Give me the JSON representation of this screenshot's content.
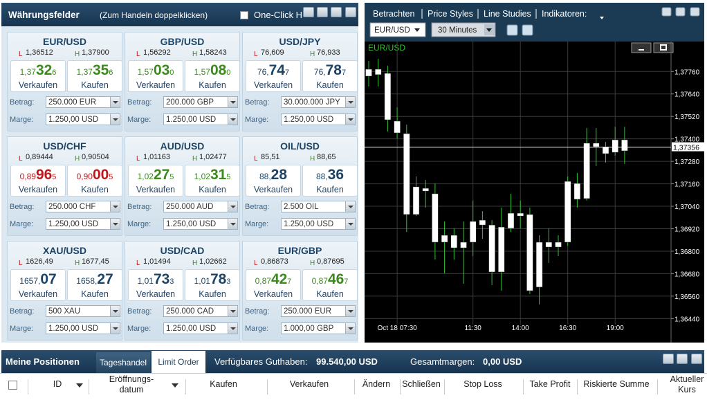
{
  "rates_panel": {
    "title": "Währungsfelder",
    "hint": "(Zum Handeln doppelklicken)",
    "one_click": "One-Click H",
    "labels": {
      "low": "L",
      "high": "H",
      "sell": "Verkaufen",
      "buy": "Kaufen",
      "amount": "Betrag:",
      "margin": "Marge:"
    },
    "tiles": [
      {
        "pair": "EUR/USD",
        "low": "1,36512",
        "high": "1,37900",
        "sell": {
          "pre": "1,37",
          "big": "32",
          "post": "6",
          "color": "#3a8a1c"
        },
        "buy": {
          "pre": "1,37",
          "big": "35",
          "post": "6",
          "color": "#3a8a1c"
        },
        "amount": "250.000 EUR",
        "margin": "1.250,00 USD"
      },
      {
        "pair": "GBP/USD",
        "low": "1,56292",
        "high": "1,58243",
        "sell": {
          "pre": "1,57",
          "big": "03",
          "post": "0",
          "color": "#3a8a1c"
        },
        "buy": {
          "pre": "1,57",
          "big": "08",
          "post": "0",
          "color": "#3a8a1c"
        },
        "amount": "200.000 GBP",
        "margin": "1.250,00 USD"
      },
      {
        "pair": "USD/JPY",
        "low": "76,609",
        "high": "76,933",
        "sell": {
          "pre": "76,",
          "big": "74",
          "post": "7",
          "color": "#1d4466"
        },
        "buy": {
          "pre": "76,",
          "big": "78",
          "post": "7",
          "color": "#1d4466"
        },
        "amount": "30.000.000 JPY",
        "margin": "1.250,00 USD"
      },
      {
        "pair": "USD/CHF",
        "low": "0,89444",
        "high": "0,90504",
        "sell": {
          "pre": "0,89",
          "big": "96",
          "post": "5",
          "color": "#c0161c"
        },
        "buy": {
          "pre": "0,90",
          "big": "00",
          "post": "5",
          "color": "#c0161c"
        },
        "amount": "250.000 CHF",
        "margin": "1.250,00 USD"
      },
      {
        "pair": "AUD/USD",
        "low": "1,01163",
        "high": "1,02477",
        "sell": {
          "pre": "1,02",
          "big": "27",
          "post": "5",
          "color": "#3a8a1c"
        },
        "buy": {
          "pre": "1,02",
          "big": "31",
          "post": "5",
          "color": "#3a8a1c"
        },
        "amount": "250.000 AUD",
        "margin": "1.250,00 USD"
      },
      {
        "pair": "OIL/USD",
        "low": "85,51",
        "high": "88,65",
        "sell": {
          "pre": "88,",
          "big": "28",
          "color": "#1d4466"
        },
        "buy": {
          "pre": "88,",
          "big": "36",
          "color": "#1d4466"
        },
        "amount": "2.500 OIL",
        "margin": "1.250,00 USD"
      },
      {
        "pair": "XAU/USD",
        "low": "1626,49",
        "high": "1677,45",
        "sell": {
          "pre": "1657,",
          "big": "07",
          "color": "#1d4466"
        },
        "buy": {
          "pre": "1658,",
          "big": "27",
          "color": "#1d4466"
        },
        "amount": "500 XAU",
        "margin": "1.250,00 USD"
      },
      {
        "pair": "USD/CAD",
        "low": "1,01494",
        "high": "1,02662",
        "sell": {
          "pre": "1,01",
          "big": "73",
          "post": "3",
          "color": "#1d4466"
        },
        "buy": {
          "pre": "1,01",
          "big": "78",
          "post": "3",
          "color": "#1d4466"
        },
        "amount": "250.000 CAD",
        "margin": "1.250,00 USD"
      },
      {
        "pair": "EUR/GBP",
        "low": "0,86873",
        "high": "0,87695",
        "sell": {
          "pre": "0,87",
          "big": "42",
          "post": "7",
          "color": "#3a8a1c"
        },
        "buy": {
          "pre": "0,87",
          "big": "46",
          "post": "7",
          "color": "#3a8a1c"
        },
        "amount": "250.000 EUR",
        "margin": "1.000,00 GBP"
      }
    ]
  },
  "chart_panel": {
    "menu": [
      "Betrachten",
      "Price Styles",
      "Line Studies",
      "Indikatoren:"
    ],
    "symbol": "EUR/USD",
    "interval": "30 Minutes"
  },
  "chart_data": {
    "type": "candlestick",
    "title": "EUR/USD",
    "categories": [
      null,
      null,
      null,
      "Oct 18 07:30",
      null,
      null,
      null,
      null,
      null,
      null,
      null,
      "11:30",
      null,
      null,
      null,
      null,
      "14:00",
      null,
      null,
      null,
      null,
      "16:30",
      null,
      null,
      null,
      null,
      "19:00",
      null
    ],
    "open": [
      1.37735,
      1.37743,
      1.3775,
      1.37495,
      1.37428,
      1.36996,
      1.37136,
      1.37107,
      1.36885,
      1.36885,
      1.36818,
      1.36848,
      1.36966,
      1.3694,
      1.36689,
      1.36922,
      1.37003,
      1.36996,
      1.36608,
      1.36822,
      1.36822,
      1.36848,
      1.37077,
      1.37081,
      1.37358,
      1.37358,
      1.37328,
      1.37336
    ],
    "high": [
      1.37816,
      1.37828,
      1.37791,
      1.37569,
      1.37476,
      1.37199,
      1.37181,
      1.37162,
      1.36959,
      1.36922,
      1.36959,
      1.3707,
      1.37014,
      1.36966,
      1.37033,
      1.37107,
      1.3707,
      1.37033,
      1.36885,
      1.36922,
      1.36885,
      1.37199,
      1.37218,
      1.37458,
      1.37458,
      1.37384,
      1.37465,
      1.37465
    ],
    "low": [
      1.3768,
      1.3768,
      1.37439,
      1.37402,
      1.36903,
      1.36988,
      1.37033,
      1.36755,
      1.36682,
      1.36755,
      1.36626,
      1.36774,
      1.36866,
      1.36619,
      1.36589,
      1.36903,
      1.36922,
      1.36571,
      1.36515,
      1.36737,
      1.36774,
      1.36829,
      1.37033,
      1.3707,
      1.37255,
      1.37273,
      1.3731,
      1.37266
    ],
    "close": [
      1.37772,
      1.37772,
      1.37502,
      1.37432,
      1.36996,
      1.37144,
      1.37121,
      1.36848,
      1.36848,
      1.36818,
      1.36848,
      1.36959,
      1.3694,
      1.36689,
      1.36929,
      1.37003,
      1.36988,
      1.36589,
      1.36848,
      1.36848,
      1.36848,
      1.37173,
      1.37162,
      1.37377,
      1.37377,
      1.37321,
      1.37395,
      1.37395
    ],
    "body_color": "#ffffff",
    "wick_color": "#33c233",
    "current": 1.37356,
    "current_label": "1,37356",
    "ylim": [
      1.3636,
      1.3792
    ],
    "yticks": [
      {
        "value": 1.3644,
        "label": "1,36440"
      },
      {
        "value": 1.3656,
        "label": "1,36560"
      },
      {
        "value": 1.3668,
        "label": "1,36680"
      },
      {
        "value": 1.368,
        "label": "1,36800"
      },
      {
        "value": 1.3692,
        "label": "1,36920"
      },
      {
        "value": 1.3704,
        "label": "1,37040"
      },
      {
        "value": 1.3716,
        "label": "1,37160"
      },
      {
        "value": 1.3728,
        "label": "1,37280"
      },
      {
        "value": 1.374,
        "label": "1,37400"
      },
      {
        "value": 1.3752,
        "label": "1,37520"
      },
      {
        "value": 1.3764,
        "label": "1,37640"
      },
      {
        "value": 1.3776,
        "label": "1,37760"
      }
    ],
    "grid": true
  },
  "positions_panel": {
    "title": "Meine Positionen",
    "tabs": [
      "Tageshandel",
      "Limit Order"
    ],
    "balance_label": "Verfügbares Guthaben:",
    "balance": "99.540,00 USD",
    "margin_label": "Gesamtmargen:",
    "margin": "0,00 USD",
    "columns": [
      [
        "ID"
      ],
      [
        "Eröffnungs-",
        "datum"
      ],
      [
        "Kaufen"
      ],
      [
        "Verkaufen"
      ],
      [
        "Ändern"
      ],
      [
        "Schließen"
      ],
      [
        "Stop Loss"
      ],
      [
        "Take Profit"
      ],
      [
        "Riskierte Summe"
      ],
      [
        "Aktueller",
        "Kurs"
      ]
    ]
  }
}
